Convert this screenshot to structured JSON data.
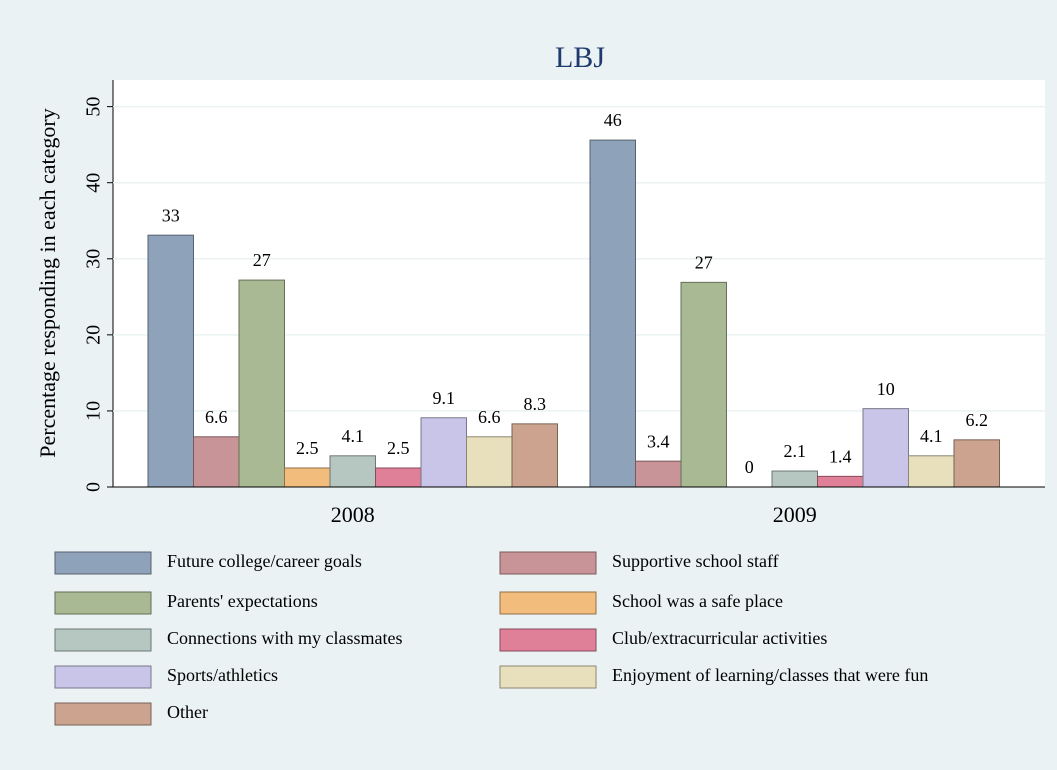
{
  "chart_data": {
    "type": "bar",
    "title": "LBJ",
    "y_label": "Percentage responding in each category",
    "categories": [
      "2008",
      "2009"
    ],
    "ylim": [
      0,
      53.5
    ],
    "yticks": [
      0,
      10,
      20,
      30,
      40,
      50
    ],
    "grid": true,
    "series": [
      {
        "name": "Future college/career goals",
        "color": "#8ea3b9",
        "values": [
          33.1,
          45.6
        ],
        "value_labels": [
          "33",
          "46"
        ]
      },
      {
        "name": "Supportive school staff",
        "color": "#c99497",
        "values": [
          6.6,
          3.4
        ]
      },
      {
        "name": "Parents' expectations",
        "color": "#a8b994",
        "values": [
          27.2,
          26.9
        ],
        "value_labels": [
          "27",
          "27"
        ]
      },
      {
        "name": "School was a safe place",
        "color": "#f2bc7c",
        "values": [
          2.5,
          0
        ]
      },
      {
        "name": "Connections with my classmates",
        "color": "#b5c7c0",
        "values": [
          4.1,
          2.1
        ]
      },
      {
        "name": "Club/extracurricular activities",
        "color": "#e07f98",
        "values": [
          2.5,
          1.4
        ]
      },
      {
        "name": "Sports/athletics",
        "color": "#c9c5e8",
        "values": [
          9.1,
          10.3
        ],
        "value_labels": [
          "9.1",
          "10"
        ]
      },
      {
        "name": "Enjoyment of learning/classes that were fun",
        "color": "#e8e0bd",
        "values": [
          6.6,
          4.1
        ]
      },
      {
        "name": "Other",
        "color": "#cba38e",
        "values": [
          8.3,
          6.2
        ]
      }
    ]
  }
}
